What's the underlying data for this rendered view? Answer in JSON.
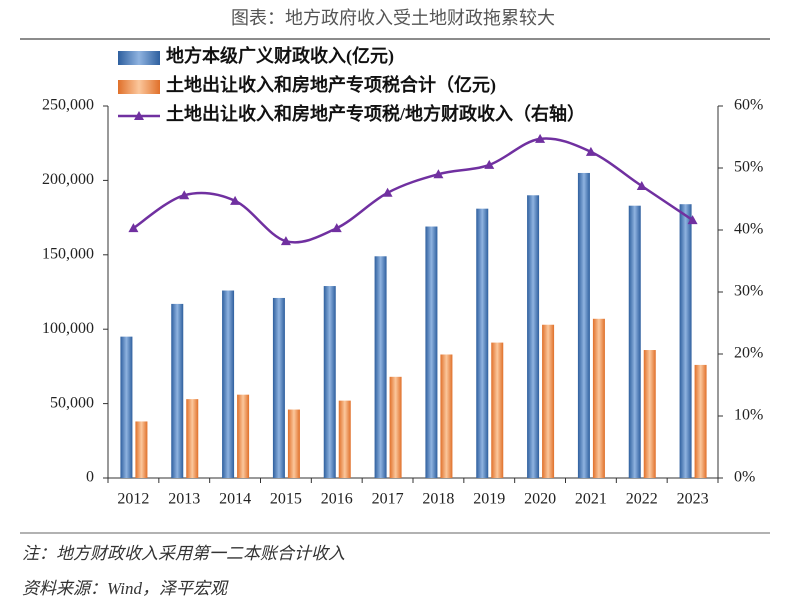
{
  "chart_data": {
    "type": "bar-line",
    "title": "图表：地方政府收入受土地财政拖累较大",
    "categories": [
      "2012",
      "2013",
      "2014",
      "2015",
      "2016",
      "2017",
      "2018",
      "2019",
      "2020",
      "2021",
      "2022",
      "2023"
    ],
    "series": [
      {
        "name": "地方本级广义财政收入(亿元)",
        "type": "bar",
        "color": "#4a7fc0",
        "values": [
          95000,
          117000,
          126000,
          121000,
          129000,
          149000,
          169000,
          181000,
          190000,
          205000,
          183000,
          184000
        ]
      },
      {
        "name": "土地出让收入和房地产专项税合计（亿元)",
        "type": "bar",
        "color": "#f0883c",
        "values": [
          38000,
          53000,
          56000,
          46000,
          52000,
          68000,
          83000,
          91000,
          103000,
          107000,
          86000,
          76000
        ]
      },
      {
        "name": "土地出让收入和房地产专项税/地方财政收入（右轴）",
        "type": "line",
        "axis": "y2",
        "color": "#7030a0",
        "values": [
          40.3,
          45.6,
          44.7,
          38.2,
          40.3,
          46,
          49,
          50.5,
          54.7,
          52.6,
          47.1,
          41.6
        ]
      }
    ],
    "ylim": [
      0,
      250000
    ],
    "yticks": [
      0,
      {
        "value": 50000,
        "label": "50,000"
      },
      {
        "value": 100000,
        "label": "100,000"
      },
      {
        "value": 150000,
        "label": "150,000"
      },
      {
        "value": 200000,
        "label": "200,000"
      },
      {
        "value": 250000,
        "label": "250,000"
      }
    ],
    "y2lim": [
      0,
      60
    ],
    "y2ticks": [
      {
        "value": 0,
        "label": "0%"
      },
      {
        "value": 10,
        "label": "10%"
      },
      {
        "value": 20,
        "label": "20%"
      },
      {
        "value": 30,
        "label": "30%"
      },
      {
        "value": 40,
        "label": "40%"
      },
      {
        "value": 50,
        "label": "50%"
      },
      {
        "value": 60,
        "label": "60%"
      }
    ],
    "notes": [
      "注：地方财政收入采用第一二本账合计收入",
      "资料来源：Wind，泽平宏观"
    ]
  }
}
